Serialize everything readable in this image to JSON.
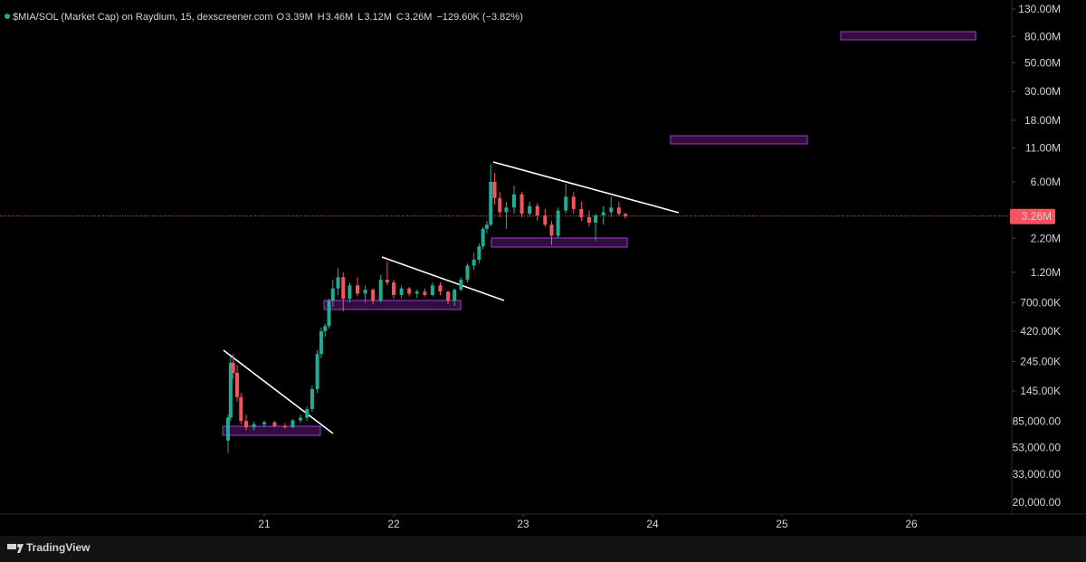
{
  "chart_data": {
    "type": "candlestick",
    "title": "$MIA/SOL (Market Cap) on Raydium, 15, dexscreener.com",
    "legend_fields": [
      {
        "letter": "O",
        "text": "3.39M"
      },
      {
        "letter": "H",
        "text": "3.46M"
      },
      {
        "letter": "L",
        "text": "3.12M"
      },
      {
        "letter": "C",
        "text": "3.26M"
      }
    ],
    "change_text": "−129.60K (−3.82%)",
    "log_scale": true,
    "up_color": "#22ab94",
    "down_color": "#f7525f",
    "x": [
      20.72,
      20.74,
      20.76,
      20.79,
      20.82,
      20.86,
      20.92,
      21.0,
      21.08,
      21.16,
      21.22,
      21.28,
      21.33,
      21.37,
      21.41,
      21.44,
      21.47,
      21.5,
      21.53,
      21.57,
      21.61,
      21.66,
      21.72,
      21.78,
      21.84,
      21.9,
      21.95,
      22.0,
      22.06,
      22.12,
      22.18,
      22.24,
      22.3,
      22.36,
      22.42,
      22.47,
      22.52,
      22.57,
      22.62,
      22.66,
      22.69,
      22.72,
      22.75,
      22.78,
      22.82,
      22.87,
      22.93,
      22.99,
      23.05,
      23.11,
      23.17,
      23.22,
      23.27,
      23.33,
      23.39,
      23.45,
      23.51,
      23.56,
      23.62,
      23.68,
      23.74,
      23.79
    ],
    "open": [
      60000,
      90000,
      240000,
      200000,
      130000,
      85000,
      76000,
      80000,
      83000,
      78000,
      76000,
      86000,
      90000,
      105000,
      150000,
      280000,
      420000,
      460000,
      720000,
      900000,
      1100000,
      750000,
      950000,
      820000,
      880000,
      720000,
      1050000,
      1000000,
      800000,
      900000,
      820000,
      850000,
      800000,
      950000,
      850000,
      720000,
      880000,
      1050000,
      1350000,
      1500000,
      1900000,
      2600000,
      2800000,
      6000000,
      4500000,
      3500000,
      3800000,
      4800000,
      3400000,
      3900000,
      3300000,
      2800000,
      2300000,
      3600000,
      4600000,
      3700000,
      3200000,
      2900000,
      3300000,
      3500000,
      3800000,
      3390000
    ],
    "high": [
      95000,
      270000,
      280000,
      230000,
      140000,
      95000,
      84000,
      86000,
      85000,
      82000,
      88000,
      95000,
      110000,
      160000,
      300000,
      450000,
      480000,
      750000,
      1050000,
      1300000,
      1200000,
      1000000,
      1100000,
      950000,
      900000,
      1150000,
      1450000,
      1050000,
      950000,
      920000,
      880000,
      900000,
      1000000,
      1000000,
      860000,
      900000,
      1100000,
      1400000,
      1700000,
      2000000,
      2700000,
      3000000,
      8200000,
      7000000,
      5000000,
      4200000,
      5600000,
      5000000,
      4200000,
      4100000,
      3700000,
      3000000,
      3800000,
      5800000,
      5000000,
      4200000,
      3600000,
      3400000,
      3900000,
      4600000,
      4200000,
      3460000
    ],
    "low": [
      48000,
      85000,
      180000,
      120000,
      80000,
      72000,
      72000,
      76000,
      76000,
      74000,
      75000,
      82000,
      85000,
      100000,
      140000,
      260000,
      380000,
      440000,
      650000,
      800000,
      600000,
      700000,
      780000,
      700000,
      680000,
      700000,
      950000,
      750000,
      760000,
      780000,
      760000,
      780000,
      780000,
      800000,
      680000,
      660000,
      850000,
      1000000,
      1250000,
      1400000,
      1800000,
      2400000,
      2700000,
      4000000,
      3200000,
      2600000,
      3400000,
      3200000,
      3200000,
      3000000,
      2700000,
      1950000,
      2200000,
      3400000,
      3400000,
      3000000,
      2700000,
      2100000,
      2800000,
      3200000,
      3300000,
      3120000
    ],
    "close": [
      90000,
      240000,
      200000,
      130000,
      85000,
      76000,
      80000,
      83000,
      78000,
      76000,
      86000,
      90000,
      105000,
      150000,
      280000,
      420000,
      460000,
      720000,
      900000,
      1100000,
      750000,
      950000,
      820000,
      880000,
      720000,
      1050000,
      1000000,
      800000,
      900000,
      820000,
      850000,
      800000,
      950000,
      850000,
      720000,
      880000,
      1050000,
      1350000,
      1500000,
      1900000,
      2600000,
      2800000,
      6000000,
      4500000,
      3500000,
      3800000,
      4800000,
      3400000,
      3900000,
      3300000,
      2800000,
      2300000,
      3600000,
      4600000,
      3700000,
      3200000,
      2900000,
      3300000,
      3500000,
      3800000,
      3390000,
      3260000
    ],
    "xlim": [
      18.958,
      26.776
    ],
    "xticks": [
      21,
      22,
      23,
      24,
      25,
      26
    ],
    "ylim": [
      16480,
      152800000
    ],
    "yticks": [
      {
        "value": 130000000,
        "label": "130.00M"
      },
      {
        "value": 80000000,
        "label": "80.00M"
      },
      {
        "value": 50000000,
        "label": "50.00M"
      },
      {
        "value": 30000000,
        "label": "30.00M"
      },
      {
        "value": 18000000,
        "label": "18.00M"
      },
      {
        "value": 11000000,
        "label": "11.00M"
      },
      {
        "value": 6000000,
        "label": "6.00M"
      },
      {
        "value": 2200000,
        "label": "2.20M"
      },
      {
        "value": 1200000,
        "label": "1.20M"
      },
      {
        "value": 700000,
        "label": "700.00K"
      },
      {
        "value": 420000,
        "label": "420.00K"
      },
      {
        "value": 245000,
        "label": "245.00K"
      },
      {
        "value": 145000,
        "label": "145.00K"
      },
      {
        "value": 85000,
        "label": "85,000.00"
      },
      {
        "value": 53000,
        "label": "53,000.00"
      },
      {
        "value": 33000,
        "label": "33,000.00"
      },
      {
        "value": 20000,
        "label": "20,000.00"
      }
    ],
    "last_price": {
      "value": 3260000,
      "label": "3.26M"
    },
    "watermark": "TradingView"
  }
}
